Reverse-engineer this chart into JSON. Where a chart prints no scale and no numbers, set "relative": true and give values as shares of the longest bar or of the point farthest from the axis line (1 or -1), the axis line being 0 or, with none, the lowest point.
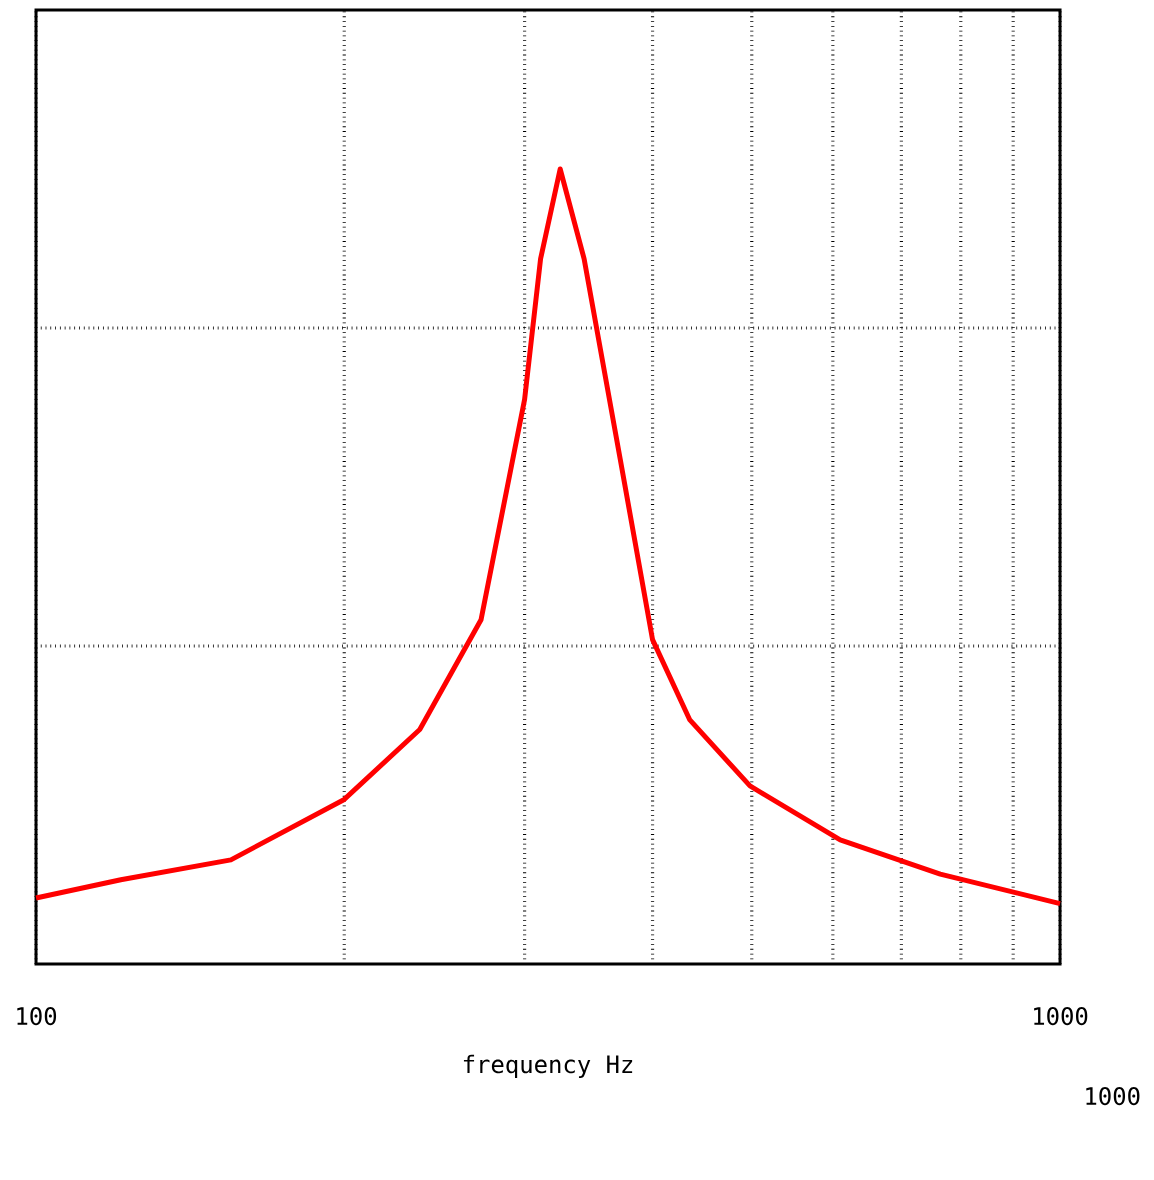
{
  "chart_data": {
    "type": "line",
    "xlabel": "frequency     Hz",
    "relative": true,
    "log": "x",
    "grid": true,
    "color": "#ff0000",
    "xlim": [
      100,
      1000
    ],
    "xticks": [
      100,
      {
        "value": 200,
        "label": null
      },
      {
        "value": 300,
        "label": null
      },
      {
        "value": 400,
        "label": null
      },
      {
        "value": 500,
        "label": null
      },
      {
        "value": 600,
        "label": null
      },
      {
        "value": 700,
        "label": null
      },
      {
        "value": 800,
        "label": null
      },
      {
        "value": 900,
        "label": null
      },
      1000
    ],
    "x": [
      100,
      121,
      155,
      200,
      237,
      272,
      300,
      311,
      325,
      343,
      372,
      400,
      435,
      498,
      610,
      764,
      1000
    ],
    "values": [
      0.083,
      0.106,
      0.131,
      0.207,
      0.295,
      0.433,
      0.71,
      0.887,
      1,
      0.887,
      0.635,
      0.408,
      0.307,
      0.224,
      0.156,
      0.113,
      0.076
    ],
    "annotations": [
      "1000"
    ]
  }
}
